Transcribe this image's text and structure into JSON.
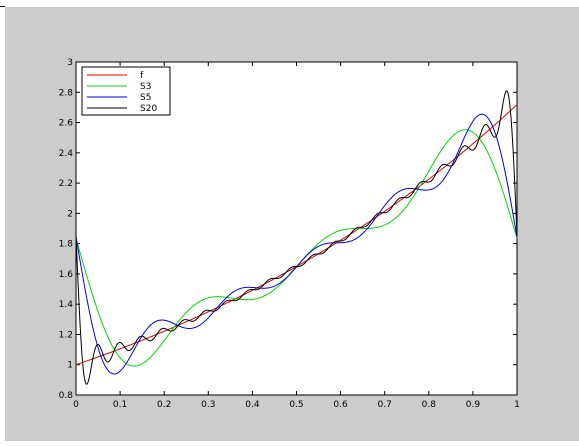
{
  "chart_data": {
    "type": "line",
    "title": "",
    "xlabel": "",
    "ylabel": "",
    "xlim": [
      0,
      1
    ],
    "ylim": [
      0.8,
      3
    ],
    "grid": false,
    "legend_position": "top-left",
    "x_ticks": [
      "0",
      "0.1",
      "0.2",
      "0.3",
      "0.4",
      "0.5",
      "0.6",
      "0.7",
      "0.8",
      "0.9",
      "1"
    ],
    "y_ticks": [
      "0.8",
      "1",
      "1.2",
      "1.4",
      "1.6",
      "1.8",
      "2",
      "2.2",
      "2.4",
      "2.6",
      "2.8",
      "3"
    ],
    "function": "exp(x), 0 <= x <= 1",
    "series": [
      {
        "name": "f",
        "color": "#e00000",
        "fourier_terms": 0
      },
      {
        "name": "S3",
        "color": "#00dd00",
        "fourier_terms": 3
      },
      {
        "name": "S5",
        "color": "#0000ee",
        "fourier_terms": 5
      },
      {
        "name": "S20",
        "color": "#000000",
        "fourier_terms": 20
      }
    ]
  }
}
